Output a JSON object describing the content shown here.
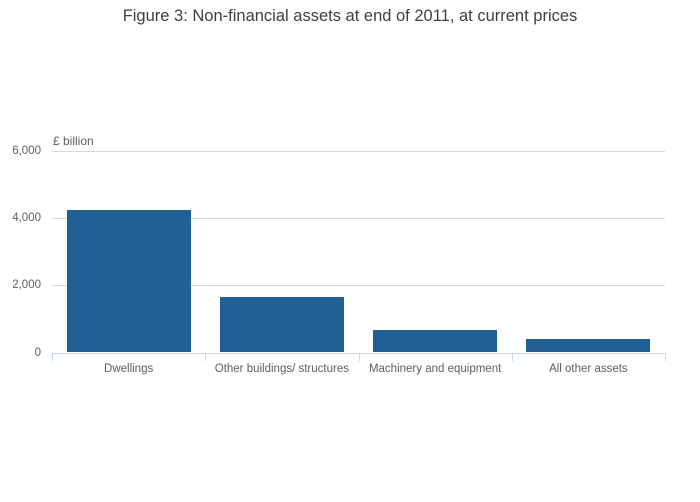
{
  "chart_data": {
    "type": "bar",
    "title": "Figure 3: Non-financial assets at end of 2011, at current prices",
    "ylabel": "£ billion",
    "xlabel": "",
    "categories": [
      "Dwellings",
      "Other buildings/ structures",
      "Machinery and equipment",
      "All other assets"
    ],
    "values": [
      4250,
      1640,
      660,
      390
    ],
    "ylim": [
      0,
      6000
    ],
    "yticks": [
      0,
      2000,
      4000,
      6000
    ],
    "ytick_labels": [
      "0",
      "2,000",
      "4,000",
      "6,000"
    ],
    "grid": true,
    "legend": "none"
  },
  "colors": {
    "bar": "#206095",
    "gridline": "#d9d9d9",
    "axis_line": "#c9d6e3",
    "label_text": "#5f5f5f",
    "title_text": "#414042",
    "background": "#ffffff"
  }
}
